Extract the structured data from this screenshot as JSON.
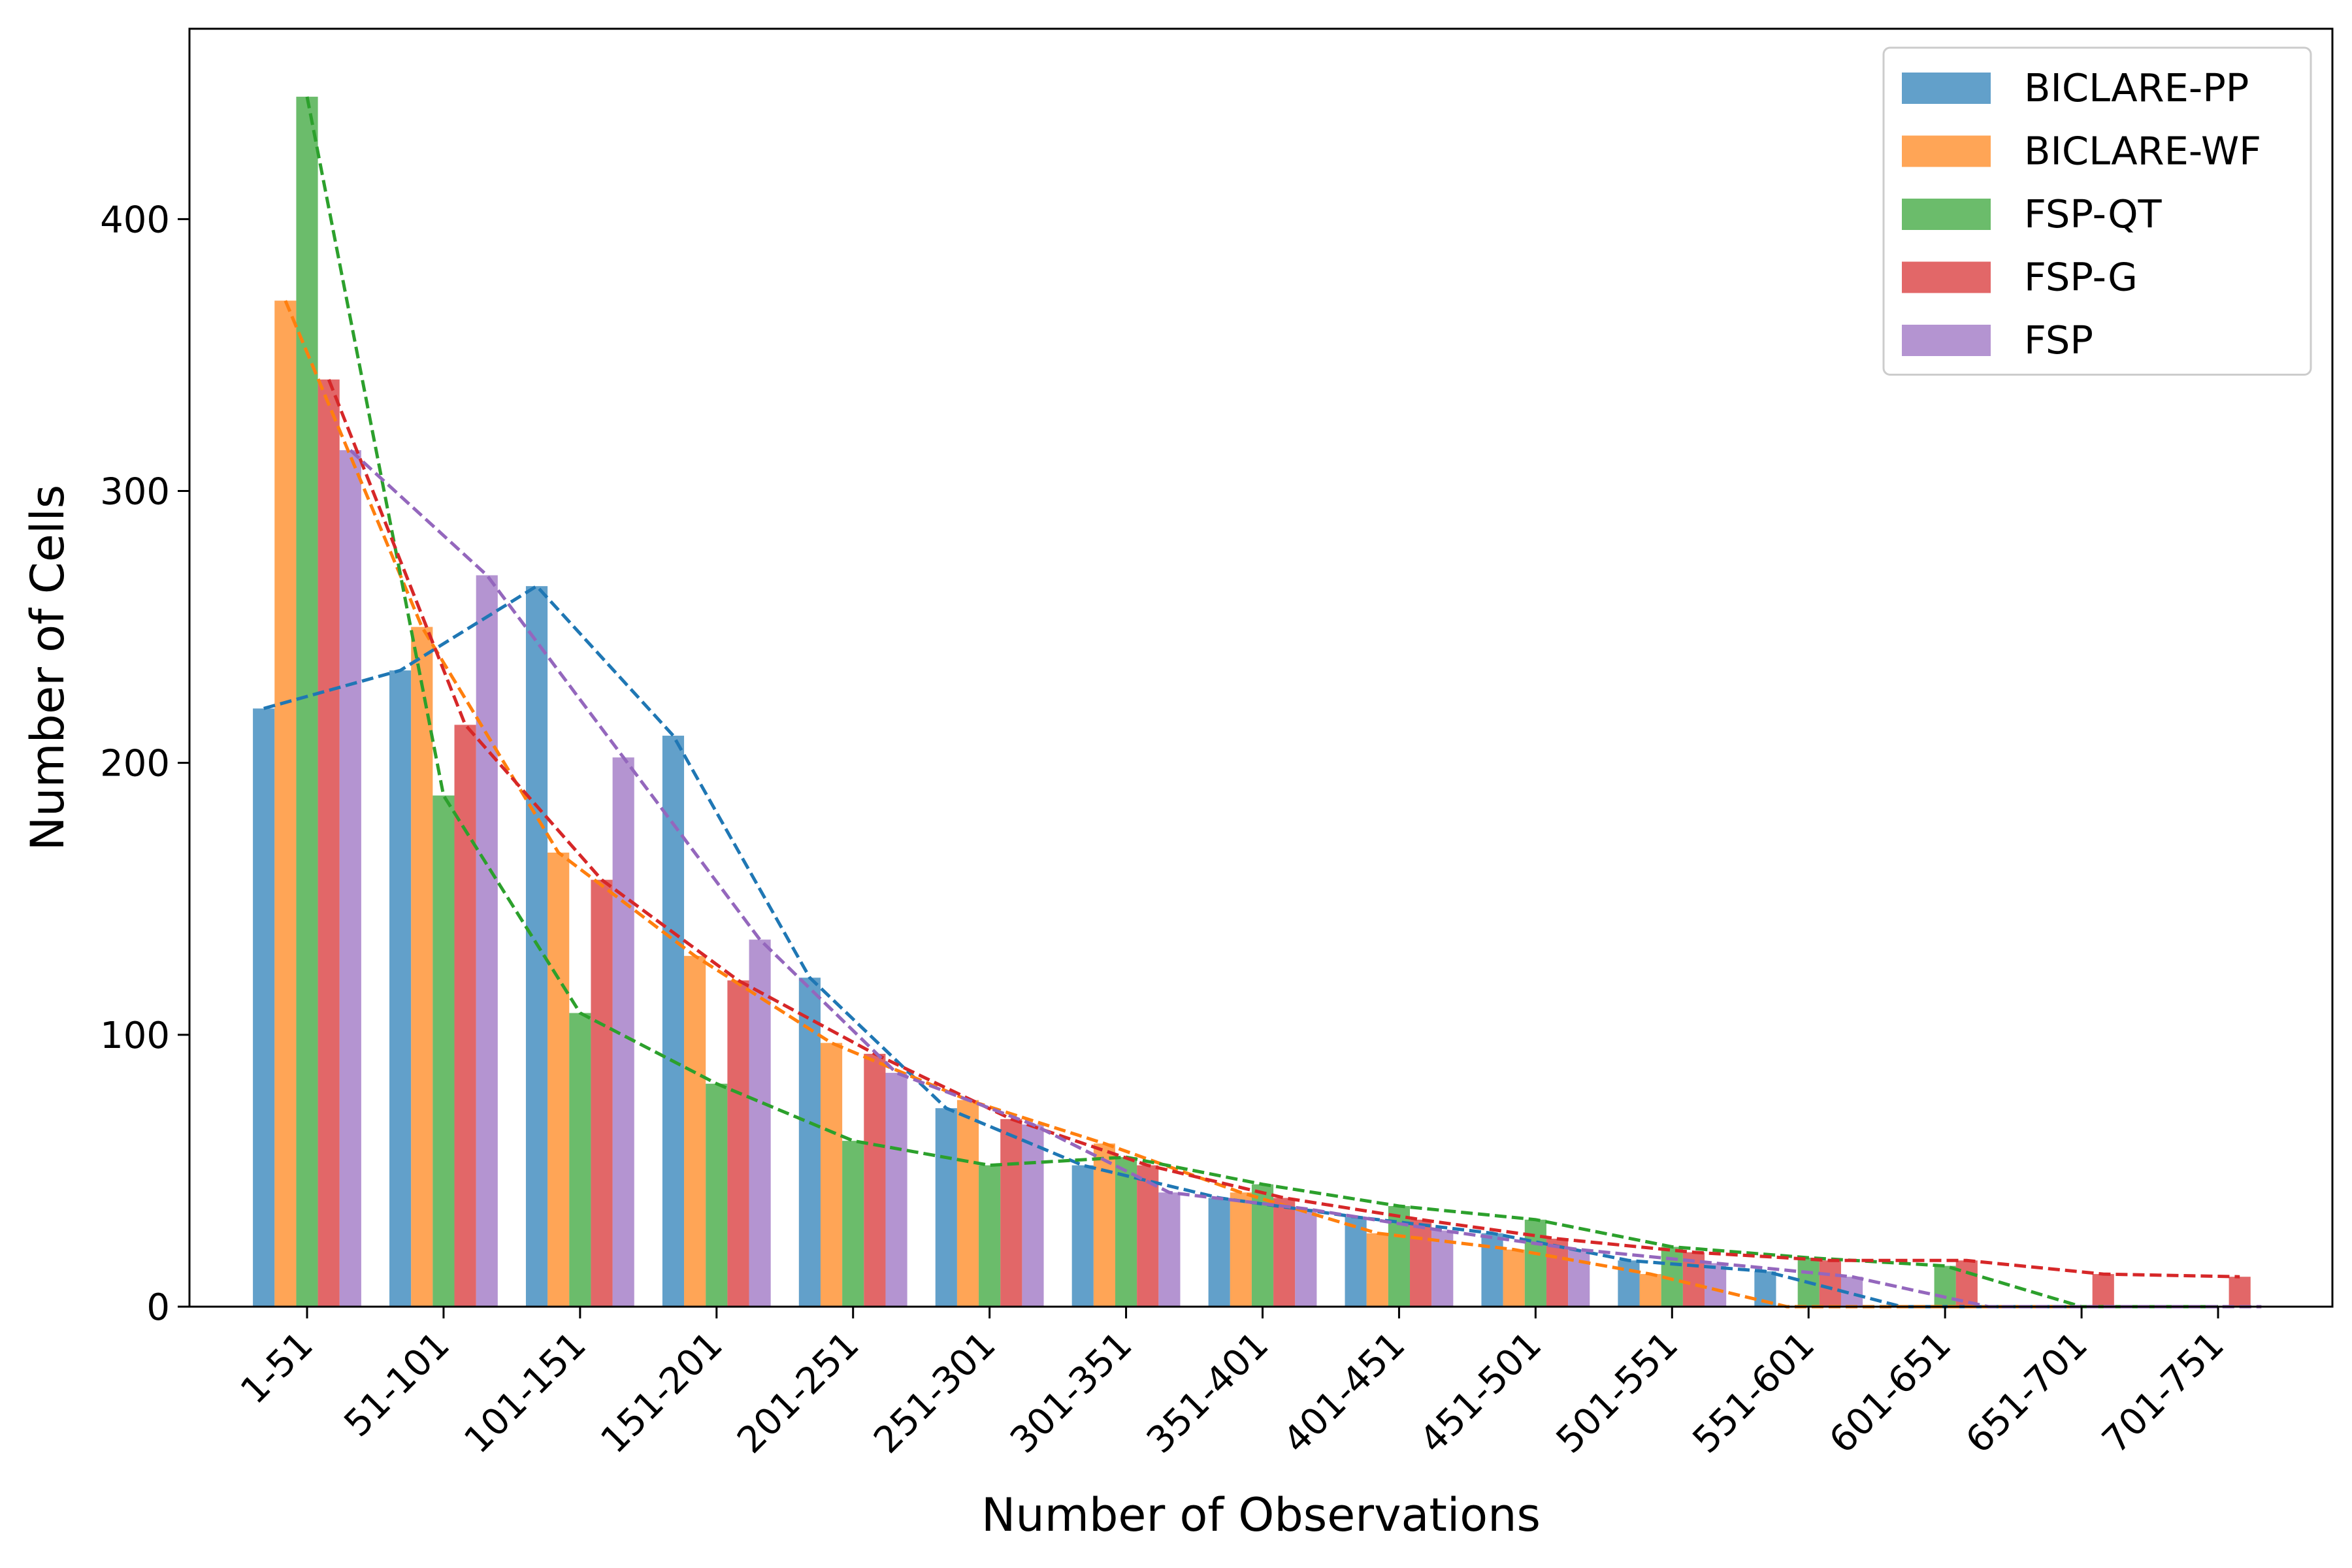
{
  "chart_data": {
    "type": "bar",
    "xlabel": "Number of Observations",
    "ylabel": "Number of Cells",
    "categories": [
      "1-51",
      "51-101",
      "101-151",
      "151-201",
      "201-251",
      "251-301",
      "301-351",
      "351-401",
      "401-451",
      "451-501",
      "501-551",
      "551-601",
      "601-651",
      "651-701",
      "701-751"
    ],
    "ylim": [
      0,
      470
    ],
    "yticks": [
      0,
      100,
      200,
      300,
      400
    ],
    "grid": false,
    "legend_position": "top-right",
    "trend_lines": "dashed",
    "series": [
      {
        "name": "BICLARE-PP",
        "color": "#1f77b4",
        "values": [
          220,
          234,
          265,
          210,
          121,
          73,
          52,
          40,
          33,
          27,
          17,
          13,
          0,
          0,
          0
        ]
      },
      {
        "name": "BICLARE-WF",
        "color": "#ff7f0e",
        "values": [
          370,
          250,
          167,
          129,
          97,
          76,
          60,
          42,
          27,
          21,
          12,
          0,
          0,
          0,
          0
        ]
      },
      {
        "name": "FSP-QT",
        "color": "#2ca02c",
        "values": [
          445,
          188,
          108,
          82,
          61,
          52,
          55,
          45,
          37,
          32,
          22,
          18,
          15,
          0,
          0
        ]
      },
      {
        "name": "FSP-G",
        "color": "#d62728",
        "values": [
          341,
          214,
          157,
          120,
          93,
          69,
          52,
          40,
          32,
          25,
          20,
          17,
          17,
          12,
          11
        ]
      },
      {
        "name": "FSP",
        "color": "#9467bd",
        "values": [
          315,
          269,
          202,
          135,
          86,
          67,
          42,
          36,
          28,
          21,
          16,
          11,
          0,
          0,
          0
        ]
      }
    ]
  }
}
